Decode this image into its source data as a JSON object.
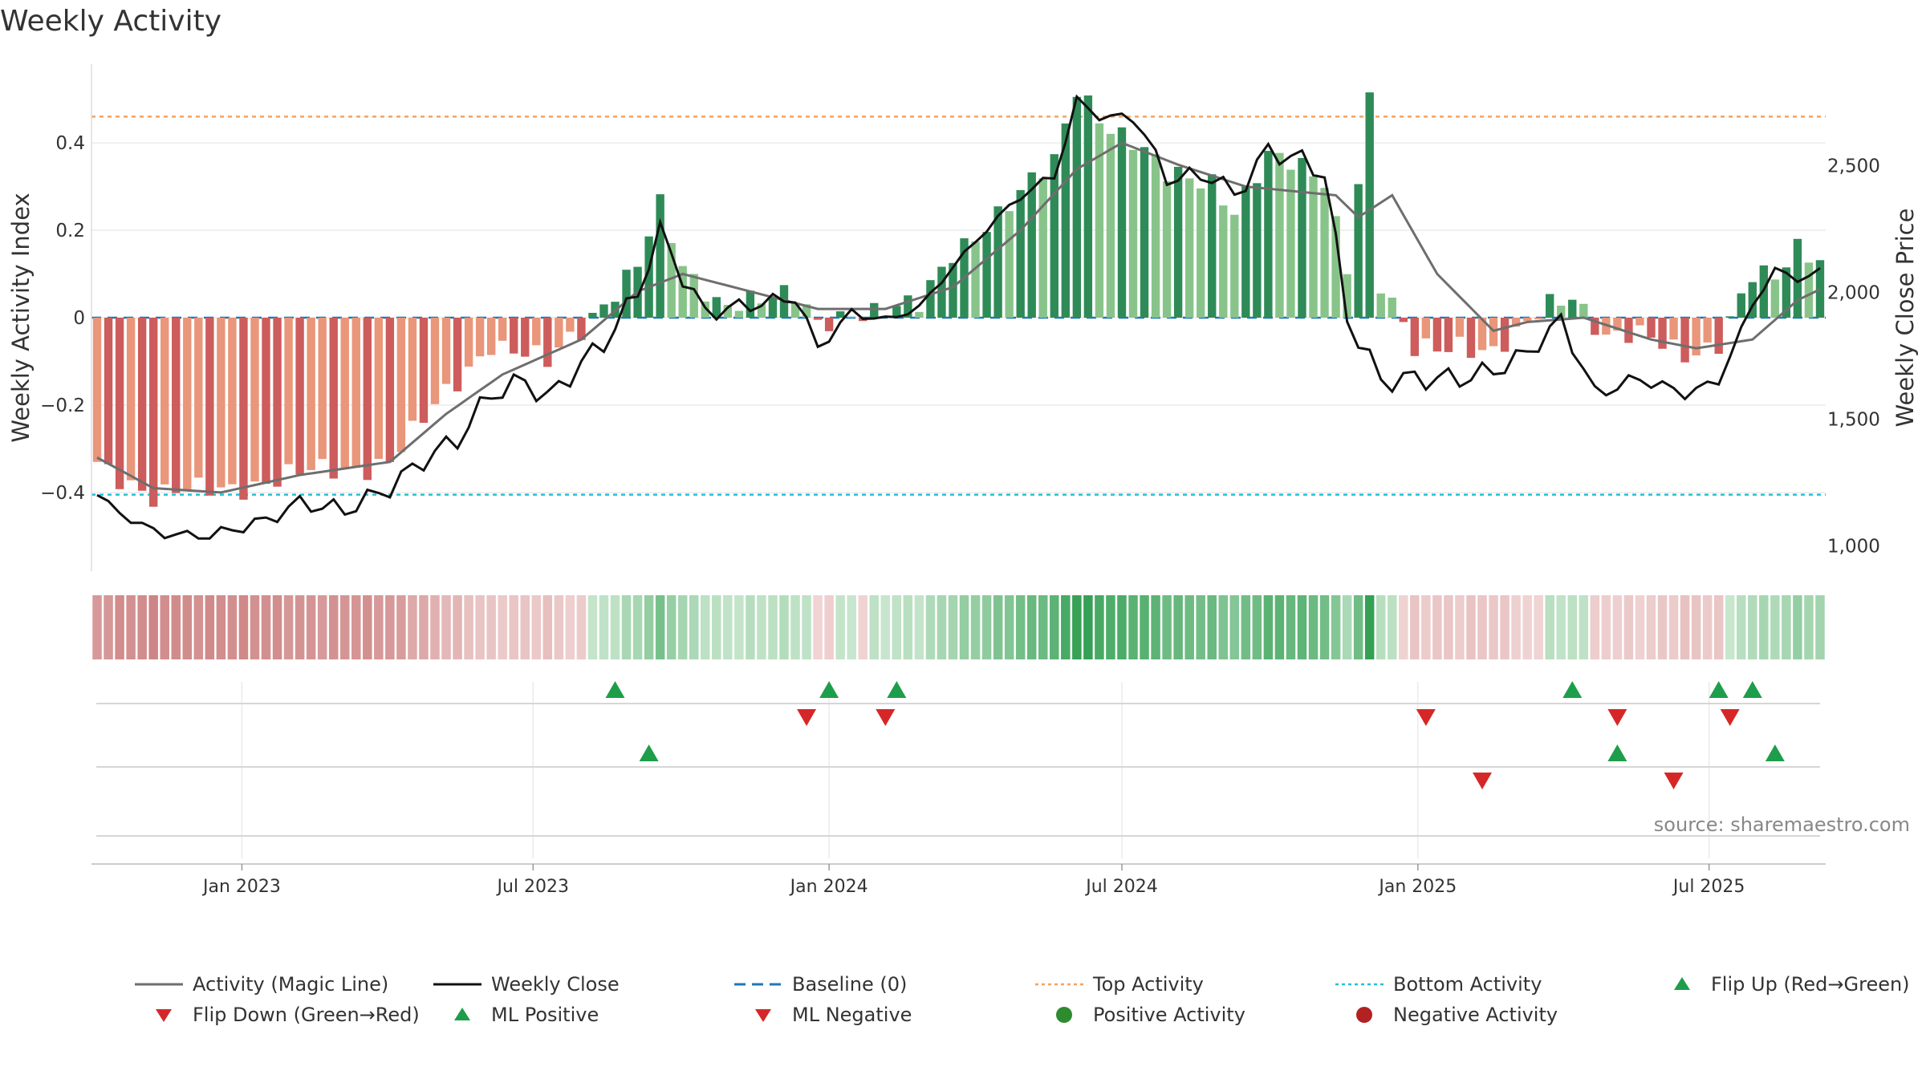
{
  "title": "Weekly Activity",
  "source": "source: sharemaestro.com",
  "colors": {
    "magic_line": "#6e6e6e",
    "close": "#111111",
    "baseline": "#1f77b4",
    "top": "#f4a261",
    "bottom": "#22c1d6",
    "pos_dark": "#2e8b57",
    "pos_light": "#88c48a",
    "neg_dark": "#cd5c5c",
    "neg_light": "#e9967a",
    "marker_up": "#1e9e4a",
    "marker_down": "#d62728"
  },
  "chart_data": {
    "type": "bar",
    "start_date": "2022-10-03",
    "week_count": 154,
    "left_axis": {
      "label": "Weekly Activity Index",
      "ticks": [
        -0.4,
        -0.2,
        0,
        0.2,
        0.4
      ],
      "tick_labels": [
        "−0.4",
        "−0.2",
        "0",
        "0.2",
        "0.4"
      ],
      "ylim": [
        -0.58,
        0.58
      ]
    },
    "right_axis": {
      "label": "Weekly Close Price",
      "ticks": [
        1000,
        1500,
        2000,
        2500
      ],
      "tick_labels": [
        "1,000",
        "1,500",
        "2,000",
        "2,500"
      ],
      "ylim": [
        900,
        2900
      ]
    },
    "x_ticks": [
      {
        "label": "Jan 2023",
        "date": "2023-01-01"
      },
      {
        "label": "Jul 2023",
        "date": "2023-07-01"
      },
      {
        "label": "Jan 2024",
        "date": "2024-01-01"
      },
      {
        "label": "Jul 2024",
        "date": "2024-07-01"
      },
      {
        "label": "Jan 2025",
        "date": "2025-01-01"
      },
      {
        "label": "Jul 2025",
        "date": "2025-07-01"
      }
    ],
    "top_activity": 0.46,
    "bottom_activity": -0.405,
    "baseline": 0,
    "activity_anchors": [
      [
        "2022-10-03",
        -0.33
      ],
      [
        "2022-10-24",
        -0.37
      ],
      [
        "2022-11-07",
        -0.41
      ],
      [
        "2022-12-05",
        -0.4
      ],
      [
        "2023-01-02",
        -0.38
      ],
      [
        "2023-02-06",
        -0.36
      ],
      [
        "2023-03-06",
        -0.35
      ],
      [
        "2023-04-03",
        -0.32
      ],
      [
        "2023-04-24",
        -0.24
      ],
      [
        "2023-05-15",
        -0.15
      ],
      [
        "2023-06-05",
        -0.05
      ],
      [
        "2023-06-26",
        -0.08
      ],
      [
        "2023-07-10",
        -0.11
      ],
      [
        "2023-07-31",
        -0.03
      ],
      [
        "2023-08-14",
        0.04
      ],
      [
        "2023-09-04",
        0.13
      ],
      [
        "2023-09-18",
        0.25
      ],
      [
        "2023-10-02",
        0.1
      ],
      [
        "2023-10-23",
        0.04
      ],
      [
        "2023-11-13",
        0.05
      ],
      [
        "2023-12-11",
        0.04
      ],
      [
        "2023-12-25",
        -0.02
      ],
      [
        "2024-01-15",
        0.02
      ],
      [
        "2024-02-05",
        0.02
      ],
      [
        "2024-02-26",
        0.02
      ],
      [
        "2024-03-18",
        0.15
      ],
      [
        "2024-04-08",
        0.22
      ],
      [
        "2024-04-29",
        0.28
      ],
      [
        "2024-05-20",
        0.35
      ],
      [
        "2024-06-03",
        0.53
      ],
      [
        "2024-06-24",
        0.44
      ],
      [
        "2024-07-08",
        0.4
      ],
      [
        "2024-07-29",
        0.32
      ],
      [
        "2024-08-26",
        0.32
      ],
      [
        "2024-09-09",
        0.25
      ],
      [
        "2024-09-30",
        0.36
      ],
      [
        "2024-10-21",
        0.34
      ],
      [
        "2024-11-04",
        0.32
      ],
      [
        "2024-11-18",
        0.13
      ],
      [
        "2024-12-02",
        0.5
      ],
      [
        "2024-12-09",
        0.07
      ],
      [
        "2024-12-30",
        -0.08
      ],
      [
        "2025-01-27",
        -0.05
      ],
      [
        "2025-02-17",
        -0.08
      ],
      [
        "2025-03-03",
        -0.05
      ],
      [
        "2025-03-24",
        0.03
      ],
      [
        "2025-04-07",
        0.06
      ],
      [
        "2025-04-28",
        -0.04
      ],
      [
        "2025-05-19",
        -0.05
      ],
      [
        "2025-06-16",
        -0.08
      ],
      [
        "2025-07-07",
        -0.05
      ],
      [
        "2025-07-28",
        0.09
      ],
      [
        "2025-08-11",
        0.08
      ],
      [
        "2025-08-25",
        0.16
      ],
      [
        "2025-09-22",
        0.13
      ]
    ],
    "magic_line_anchors": [
      [
        "2022-10-03",
        -0.32
      ],
      [
        "2022-11-07",
        -0.39
      ],
      [
        "2022-12-19",
        -0.4
      ],
      [
        "2023-02-06",
        -0.36
      ],
      [
        "2023-04-03",
        -0.33
      ],
      [
        "2023-05-08",
        -0.22
      ],
      [
        "2023-06-12",
        -0.13
      ],
      [
        "2023-07-31",
        -0.05
      ],
      [
        "2023-09-04",
        0.06
      ],
      [
        "2023-10-02",
        0.1
      ],
      [
        "2023-11-13",
        0.06
      ],
      [
        "2023-12-25",
        0.02
      ],
      [
        "2024-02-05",
        0.02
      ],
      [
        "2024-03-18",
        0.07
      ],
      [
        "2024-04-29",
        0.2
      ],
      [
        "2024-06-03",
        0.34
      ],
      [
        "2024-07-01",
        0.4
      ],
      [
        "2024-08-05",
        0.35
      ],
      [
        "2024-09-16",
        0.3
      ],
      [
        "2024-11-11",
        0.28
      ],
      [
        "2024-11-25",
        0.23
      ],
      [
        "2024-12-16",
        0.28
      ],
      [
        "2025-01-13",
        0.1
      ],
      [
        "2025-02-17",
        -0.03
      ],
      [
        "2025-03-10",
        -0.01
      ],
      [
        "2025-04-14",
        0.0
      ],
      [
        "2025-05-26",
        -0.05
      ],
      [
        "2025-06-23",
        -0.07
      ],
      [
        "2025-07-28",
        -0.05
      ],
      [
        "2025-08-25",
        0.04
      ],
      [
        "2025-09-22",
        0.09
      ]
    ],
    "close_anchors": [
      [
        "2022-10-03",
        1200
      ],
      [
        "2022-10-24",
        1100
      ],
      [
        "2022-11-14",
        1045
      ],
      [
        "2022-12-12",
        1040
      ],
      [
        "2023-01-16",
        1100
      ],
      [
        "2023-02-06",
        1170
      ],
      [
        "2023-03-06",
        1140
      ],
      [
        "2023-04-03",
        1230
      ],
      [
        "2023-04-24",
        1340
      ],
      [
        "2023-05-15",
        1420
      ],
      [
        "2023-06-05",
        1600
      ],
      [
        "2023-06-26",
        1650
      ],
      [
        "2023-07-10",
        1580
      ],
      [
        "2023-07-31",
        1720
      ],
      [
        "2023-08-14",
        1800
      ],
      [
        "2023-09-04",
        2000
      ],
      [
        "2023-09-18",
        2240
      ],
      [
        "2023-10-02",
        2060
      ],
      [
        "2023-10-16",
        1920
      ],
      [
        "2023-11-13",
        1950
      ],
      [
        "2023-12-11",
        1980
      ],
      [
        "2023-12-25",
        1780
      ],
      [
        "2024-01-15",
        1920
      ],
      [
        "2024-02-05",
        1890
      ],
      [
        "2024-02-26",
        1940
      ],
      [
        "2024-03-18",
        2100
      ],
      [
        "2024-04-08",
        2250
      ],
      [
        "2024-04-29",
        2380
      ],
      [
        "2024-05-20",
        2460
      ],
      [
        "2024-06-03",
        2750
      ],
      [
        "2024-06-24",
        2680
      ],
      [
        "2024-07-08",
        2700
      ],
      [
        "2024-07-29",
        2450
      ],
      [
        "2024-08-26",
        2460
      ],
      [
        "2024-09-09",
        2380
      ],
      [
        "2024-09-30",
        2560
      ],
      [
        "2024-10-21",
        2520
      ],
      [
        "2024-11-04",
        2470
      ],
      [
        "2024-11-18",
        1900
      ],
      [
        "2024-12-09",
        1650
      ],
      [
        "2024-12-30",
        1660
      ],
      [
        "2025-01-27",
        1660
      ],
      [
        "2025-02-17",
        1690
      ],
      [
        "2025-03-10",
        1760
      ],
      [
        "2025-03-31",
        1890
      ],
      [
        "2025-04-21",
        1600
      ],
      [
        "2025-05-19",
        1660
      ],
      [
        "2025-06-16",
        1600
      ],
      [
        "2025-07-07",
        1650
      ],
      [
        "2025-07-28",
        1950
      ],
      [
        "2025-08-11",
        2090
      ],
      [
        "2025-08-25",
        2050
      ],
      [
        "2025-09-22",
        2120
      ]
    ],
    "flip_up": [
      "2023-08-21",
      "2024-01-01",
      "2024-02-12",
      "2025-04-07",
      "2025-07-07",
      "2025-07-28"
    ],
    "flip_down": [
      "2023-12-18",
      "2024-02-05",
      "2025-01-06",
      "2025-05-05",
      "2025-07-14"
    ],
    "ml_positive": [
      "2023-09-11",
      "2025-05-05",
      "2025-08-11"
    ],
    "ml_negative": [
      "2025-02-10",
      "2025-06-09"
    ]
  },
  "legend": [
    {
      "key": "magic",
      "label": "Activity (Magic Line)"
    },
    {
      "key": "close",
      "label": "Weekly Close"
    },
    {
      "key": "baseline",
      "label": "Baseline (0)"
    },
    {
      "key": "top",
      "label": "Top Activity"
    },
    {
      "key": "bottom",
      "label": "Bottom Activity"
    },
    {
      "key": "flipup",
      "label": "Flip Up (Red→Green)"
    },
    {
      "key": "flipdown",
      "label": "Flip Down (Green→Red)"
    },
    {
      "key": "mlpos",
      "label": "ML Positive"
    },
    {
      "key": "mlneg",
      "label": "ML Negative"
    },
    {
      "key": "posact",
      "label": "Positive Activity"
    },
    {
      "key": "negact",
      "label": "Negative Activity"
    }
  ]
}
